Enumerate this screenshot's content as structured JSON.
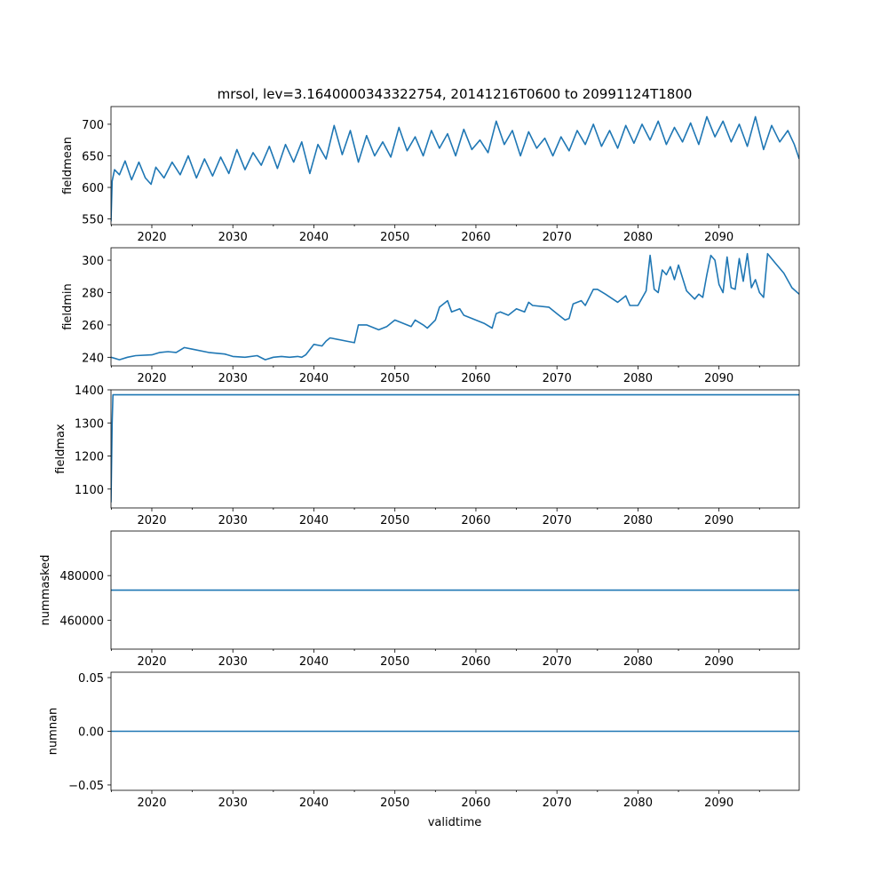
{
  "chart_data": {
    "type": "line",
    "title": "mrsol, lev=3.1640000343322754, 20141216T0600 to 20991124T1800",
    "xlabel": "validtime",
    "xlim": [
      2014.96,
      2099.9
    ],
    "xticks": [
      2020,
      2030,
      2040,
      2050,
      2060,
      2070,
      2080,
      2090
    ],
    "xtick_labels": [
      "2020",
      "2030",
      "2040",
      "2050",
      "2060",
      "2070",
      "2080",
      "2090"
    ],
    "line_color": "#1f77b4",
    "panels": [
      {
        "name": "fieldmean",
        "ylabel": "fieldmean",
        "ylim": [
          541,
          728
        ],
        "yticks": [
          550,
          600,
          650,
          700
        ],
        "ytick_labels": [
          "550",
          "600",
          "650",
          "700"
        ],
        "x": [
          2014.96,
          2015.1,
          2015.4,
          2016.0,
          2016.7,
          2017.5,
          2018.4,
          2019.2,
          2019.9,
          2020.5,
          2021.5,
          2022.5,
          2023.5,
          2024.5,
          2025.5,
          2026.5,
          2027.5,
          2028.5,
          2029.5,
          2030.5,
          2031.5,
          2032.5,
          2033.5,
          2034.5,
          2035.5,
          2036.5,
          2037.5,
          2038.5,
          2039.5,
          2040.5,
          2041.5,
          2042.5,
          2043.5,
          2044.5,
          2045.5,
          2046.5,
          2047.5,
          2048.5,
          2049.5,
          2050.5,
          2051.5,
          2052.5,
          2053.5,
          2054.5,
          2055.5,
          2056.5,
          2057.5,
          2058.5,
          2059.5,
          2060.5,
          2061.5,
          2062.5,
          2063.5,
          2064.5,
          2065.5,
          2066.5,
          2067.5,
          2068.5,
          2069.5,
          2070.5,
          2071.5,
          2072.5,
          2073.5,
          2074.5,
          2075.5,
          2076.5,
          2077.5,
          2078.5,
          2079.5,
          2080.5,
          2081.5,
          2082.5,
          2083.5,
          2084.5,
          2085.5,
          2086.5,
          2087.5,
          2088.5,
          2089.5,
          2090.5,
          2091.5,
          2092.5,
          2093.5,
          2094.5,
          2095.5,
          2096.5,
          2097.5,
          2098.5,
          2099.3,
          2099.9
        ],
        "y": [
          546,
          610,
          628,
          620,
          642,
          612,
          640,
          615,
          605,
          632,
          615,
          640,
          620,
          650,
          615,
          645,
          618,
          648,
          622,
          660,
          628,
          655,
          635,
          665,
          630,
          668,
          640,
          672,
          622,
          668,
          645,
          698,
          652,
          690,
          640,
          682,
          650,
          672,
          648,
          695,
          658,
          680,
          650,
          690,
          662,
          685,
          650,
          692,
          660,
          675,
          655,
          705,
          668,
          690,
          650,
          688,
          662,
          678,
          650,
          680,
          658,
          690,
          668,
          700,
          665,
          690,
          662,
          698,
          670,
          700,
          675,
          705,
          668,
          695,
          672,
          702,
          668,
          712,
          680,
          705,
          672,
          700,
          665,
          712,
          660,
          698,
          672,
          690,
          668,
          645
        ]
      },
      {
        "name": "fieldmin",
        "ylabel": "fieldmin",
        "ylim": [
          234.7,
          307.7
        ],
        "yticks": [
          240,
          260,
          280,
          300
        ],
        "ytick_labels": [
          "240",
          "260",
          "280",
          "300"
        ],
        "x": [
          2014.96,
          2016.0,
          2017.0,
          2018.0,
          2020.0,
          2021.0,
          2022.0,
          2023.0,
          2024.0,
          2025.0,
          2027.0,
          2029.0,
          2030.0,
          2031.5,
          2033.0,
          2034.0,
          2035.0,
          2036.0,
          2037.0,
          2038.0,
          2038.5,
          2039.0,
          2040.0,
          2041.0,
          2041.5,
          2042.0,
          2044.0,
          2045.0,
          2045.5,
          2046.5,
          2048.0,
          2049.0,
          2050.0,
          2052.0,
          2052.5,
          2053.5,
          2054.0,
          2055.0,
          2055.5,
          2056.5,
          2057.0,
          2058.0,
          2058.5,
          2059.5,
          2061.0,
          2062.0,
          2062.5,
          2063.0,
          2064.0,
          2065.0,
          2066.0,
          2066.5,
          2067.0,
          2069.0,
          2070.0,
          2071.0,
          2071.5,
          2072.0,
          2073.0,
          2073.5,
          2074.5,
          2075.0,
          2076.0,
          2077.5,
          2078.5,
          2079.0,
          2080.0,
          2081.0,
          2081.5,
          2082.0,
          2082.5,
          2083.0,
          2083.5,
          2084.0,
          2084.5,
          2085.0,
          2086.0,
          2087.0,
          2087.5,
          2088.0,
          2088.5,
          2089.0,
          2089.5,
          2090.0,
          2090.5,
          2091.0,
          2091.5,
          2092.0,
          2092.5,
          2093.0,
          2093.5,
          2094.0,
          2094.5,
          2095.0,
          2095.5,
          2096.0,
          2097.0,
          2098.0,
          2099.0,
          2099.9
        ],
        "y": [
          240,
          238.5,
          240,
          241,
          241.5,
          243,
          243.5,
          243,
          246,
          245,
          243,
          242,
          240.5,
          240,
          241,
          238.5,
          240,
          240.5,
          240,
          240.5,
          240,
          241.5,
          248,
          247,
          250,
          252,
          250,
          249,
          260,
          260,
          257,
          259,
          263,
          259,
          263,
          260,
          258,
          263,
          271,
          275,
          268,
          270,
          266,
          264,
          261,
          258,
          267,
          268,
          266,
          270,
          268,
          274,
          272,
          271,
          267,
          263,
          264,
          273,
          275,
          272,
          282,
          282,
          279,
          274,
          278,
          272,
          272,
          281,
          303,
          282,
          280,
          294,
          291,
          296,
          288,
          297,
          281,
          276,
          279,
          277,
          291,
          303,
          300,
          285,
          280,
          302,
          283,
          282,
          301,
          287,
          304,
          283,
          288,
          280,
          277,
          304,
          298,
          292,
          283,
          279
        ]
      },
      {
        "name": "fieldmax",
        "ylabel": "fieldmax",
        "ylim": [
          1043,
          1400
        ],
        "yticks": [
          1100,
          1200,
          1300,
          1400
        ],
        "ytick_labels": [
          "1100",
          "1200",
          "1300",
          "1400"
        ],
        "x": [
          2014.96,
          2015.1,
          2015.2,
          2099.9
        ],
        "y": [
          1060,
          1300,
          1385,
          1385
        ]
      },
      {
        "name": "nummasked",
        "ylabel": "nummasked",
        "ylim": [
          447000,
          500000
        ],
        "yticks": [
          460000,
          480000
        ],
        "ytick_labels": [
          "460000",
          "480000"
        ],
        "x": [
          2014.96,
          2099.9
        ],
        "y": [
          473450,
          473450
        ]
      },
      {
        "name": "numnan",
        "ylabel": "numnan",
        "ylim": [
          -0.055,
          0.055
        ],
        "yticks": [
          -0.05,
          0.0,
          0.05
        ],
        "ytick_labels": [
          "−0.05",
          "0.00",
          "0.05"
        ],
        "x": [
          2014.96,
          2099.9
        ],
        "y": [
          0,
          0
        ]
      }
    ]
  }
}
